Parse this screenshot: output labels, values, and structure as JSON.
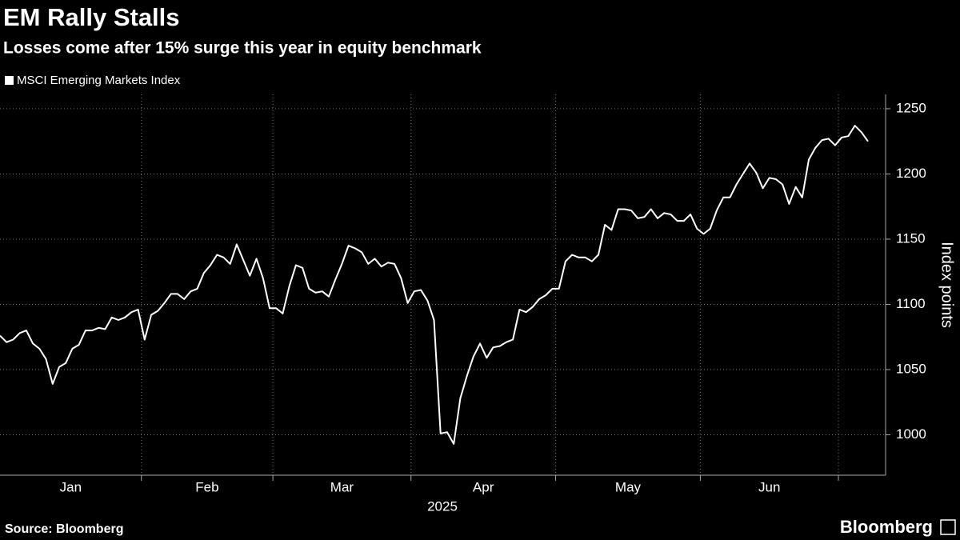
{
  "chart_data": {
    "type": "line",
    "title": "EM Rally Stalls",
    "subtitle": "Losses come after 15% surge this year in equity benchmark",
    "categories": [
      "Jan",
      "Feb",
      "Mar",
      "Apr",
      "May",
      "Jun",
      null
    ],
    "x_label": "2025",
    "y_label": "Index points",
    "series": [
      {
        "name": "MSCI Emerging Markets Index",
        "color": "#ffffff",
        "values": [
          [
            1076,
            1071,
            1073,
            1078,
            1080,
            1070,
            1066,
            1058,
            1039,
            1052,
            1055,
            1066,
            1069,
            1080,
            1080,
            1082,
            1081,
            1090,
            1088,
            1090,
            1094,
            1096
          ],
          [
            1073,
            1092,
            1095,
            1101,
            1108,
            1108,
            1104,
            1110,
            1112,
            1124,
            1130,
            1138,
            1136,
            1131,
            1146,
            1134,
            1122,
            1135,
            1120,
            1097
          ],
          [
            1097,
            1093,
            1114,
            1130,
            1128,
            1112,
            1109,
            1110,
            1106,
            1119,
            1131,
            1145,
            1143,
            1140,
            1131,
            1135,
            1129,
            1132,
            1131,
            1120,
            1101
          ],
          [
            1110,
            1111,
            1103,
            1088,
            1001,
            1002,
            993,
            1028,
            1045,
            1060,
            1070,
            1059,
            1067,
            1068,
            1071,
            1073,
            1096,
            1094,
            1098,
            1104,
            1107,
            1112
          ],
          [
            1112,
            1133,
            1138,
            1136,
            1136,
            1133,
            1138,
            1161,
            1157,
            1173,
            1173,
            1172,
            1166,
            1167,
            1173,
            1166,
            1170,
            1169,
            1164,
            1164,
            1169,
            1158
          ],
          [
            1154,
            1158,
            1172,
            1182,
            1182,
            1192,
            1200,
            1208,
            1201,
            1189,
            1197,
            1196,
            1192,
            1177,
            1190,
            1182,
            1211,
            1220,
            1226,
            1227,
            1222
          ],
          [
            1228,
            1229,
            1237,
            1232,
            1225
          ]
        ]
      }
    ],
    "ylim": [
      969,
      1261
    ],
    "yticks": [
      1000,
      1050,
      1100,
      1150,
      1200,
      1250
    ],
    "grid": true,
    "source": "Source: Bloomberg",
    "logo": "Bloomberg"
  }
}
